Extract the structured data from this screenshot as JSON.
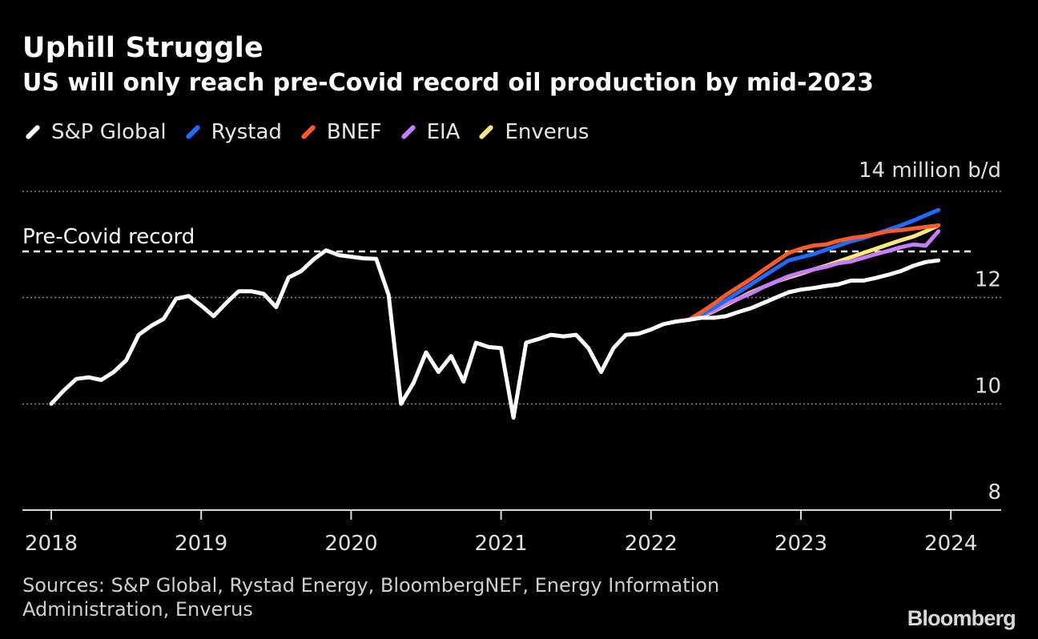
{
  "header": {
    "title": "Uphill Struggle",
    "subtitle": "US will only reach pre-Covid record oil production by mid-2023"
  },
  "footer": {
    "sources": "Sources: S&P Global, Rystad Energy, BloombergNEF, Energy Information Administration, Enverus",
    "brand": "Bloomberg"
  },
  "chart_data": {
    "type": "line",
    "title": "Uphill Struggle",
    "subtitle": "US will only reach pre-Covid record oil production by mid-2023",
    "ylabel": "14 million b/d",
    "unit_label": "14 million b/d",
    "ylim": [
      8,
      14
    ],
    "yticks": [
      8,
      10,
      12,
      14
    ],
    "ytick_labels": [
      "8",
      "10",
      "12",
      ""
    ],
    "xlim": [
      2018,
      2024.35
    ],
    "xticks": [
      2018,
      2019,
      2020,
      2021,
      2022,
      2023,
      2024
    ],
    "xtick_labels": [
      "2018",
      "2019",
      "2020",
      "2021",
      "2022",
      "2023",
      "2024"
    ],
    "grid": true,
    "legend_position": "top-left",
    "reference_line": {
      "label": "Pre-Covid record",
      "value": 12.87
    },
    "series": [
      {
        "name": "S&P Global",
        "color": "#ffffff",
        "x": [
          2018.0,
          2018.083,
          2018.167,
          2018.25,
          2018.333,
          2018.417,
          2018.5,
          2018.583,
          2018.667,
          2018.75,
          2018.833,
          2018.917,
          2019.0,
          2019.083,
          2019.167,
          2019.25,
          2019.333,
          2019.417,
          2019.5,
          2019.583,
          2019.667,
          2019.75,
          2019.833,
          2019.917,
          2020.0,
          2020.083,
          2020.167,
          2020.25,
          2020.333,
          2020.417,
          2020.5,
          2020.583,
          2020.667,
          2020.75,
          2020.833,
          2020.917,
          2021.0,
          2021.083,
          2021.167,
          2021.25,
          2021.333,
          2021.417,
          2021.5,
          2021.583,
          2021.667,
          2021.75,
          2021.833,
          2021.917,
          2022.0,
          2022.083,
          2022.167,
          2022.25,
          2022.333,
          2022.417,
          2022.5,
          2022.583,
          2022.667,
          2022.75,
          2022.833,
          2022.917,
          2023.0,
          2023.083,
          2023.167,
          2023.25,
          2023.333,
          2023.417,
          2023.5,
          2023.583,
          2023.667,
          2023.75,
          2023.833,
          2023.917
        ],
        "values": [
          10.0,
          10.25,
          10.47,
          10.5,
          10.45,
          10.6,
          10.82,
          11.3,
          11.47,
          11.6,
          11.98,
          12.03,
          11.85,
          11.65,
          11.9,
          12.12,
          12.12,
          12.07,
          11.82,
          12.38,
          12.5,
          12.72,
          12.89,
          12.8,
          12.77,
          12.74,
          12.73,
          12.05,
          10.0,
          10.4,
          10.97,
          10.6,
          10.9,
          10.42,
          11.15,
          11.07,
          11.05,
          9.74,
          11.15,
          11.22,
          11.3,
          11.27,
          11.3,
          11.05,
          10.6,
          11.05,
          11.3,
          11.32,
          11.4,
          11.5,
          11.55,
          11.58,
          11.62,
          11.62,
          11.65,
          11.73,
          11.8,
          11.9,
          12.0,
          12.1,
          12.15,
          12.18,
          12.22,
          12.25,
          12.32,
          12.32,
          12.37,
          12.43,
          12.5,
          12.6,
          12.67,
          12.7
        ]
      },
      {
        "name": "Rystad",
        "color": "#1f6cff",
        "x": [
          2022.25,
          2022.333,
          2022.417,
          2022.5,
          2022.583,
          2022.667,
          2022.75,
          2022.833,
          2022.917,
          2023.0,
          2023.083,
          2023.167,
          2023.25,
          2023.333,
          2023.417,
          2023.5,
          2023.583,
          2023.667,
          2023.75,
          2023.833,
          2023.917
        ],
        "values": [
          11.58,
          11.68,
          11.8,
          11.95,
          12.1,
          12.25,
          12.4,
          12.55,
          12.7,
          12.76,
          12.82,
          12.9,
          12.98,
          13.06,
          13.12,
          13.2,
          13.28,
          13.36,
          13.45,
          13.55,
          13.65
        ]
      },
      {
        "name": "BNEF",
        "color": "#ff5a2b",
        "x": [
          2022.25,
          2022.333,
          2022.417,
          2022.5,
          2022.583,
          2022.667,
          2022.75,
          2022.833,
          2022.917,
          2023.0,
          2023.083,
          2023.167,
          2023.25,
          2023.333,
          2023.417,
          2023.5,
          2023.583,
          2023.667,
          2023.75,
          2023.833,
          2023.917
        ],
        "values": [
          11.58,
          11.72,
          11.88,
          12.05,
          12.2,
          12.35,
          12.52,
          12.68,
          12.84,
          12.92,
          12.98,
          13.0,
          13.07,
          13.12,
          13.15,
          13.2,
          13.25,
          13.27,
          13.3,
          13.33,
          13.36
        ]
      },
      {
        "name": "EIA",
        "color": "#c77dff",
        "x": [
          2022.25,
          2022.333,
          2022.417,
          2022.5,
          2022.583,
          2022.667,
          2022.75,
          2022.833,
          2022.917,
          2023.0,
          2023.083,
          2023.167,
          2023.25,
          2023.333,
          2023.417,
          2023.5,
          2023.583,
          2023.667,
          2023.75,
          2023.833,
          2023.917
        ],
        "values": [
          11.58,
          11.66,
          11.75,
          11.88,
          11.98,
          12.08,
          12.2,
          12.3,
          12.4,
          12.47,
          12.53,
          12.58,
          12.65,
          12.68,
          12.75,
          12.82,
          12.88,
          12.95,
          13.0,
          12.98,
          13.25
        ]
      },
      {
        "name": "Enverus",
        "color": "#ffe97a",
        "x": [
          2022.25,
          2022.333,
          2022.417,
          2022.5,
          2022.583,
          2022.667,
          2022.75,
          2022.833,
          2022.917,
          2023.0,
          2023.083,
          2023.167,
          2023.25,
          2023.333,
          2023.417,
          2023.5,
          2023.583,
          2023.667,
          2023.75,
          2023.833,
          2023.917
        ],
        "values": [
          11.58,
          11.64,
          11.74,
          11.86,
          11.98,
          12.1,
          12.2,
          12.3,
          12.38,
          12.45,
          12.53,
          12.6,
          12.68,
          12.76,
          12.84,
          12.92,
          13.0,
          13.08,
          13.15,
          13.25,
          13.36
        ]
      }
    ]
  }
}
